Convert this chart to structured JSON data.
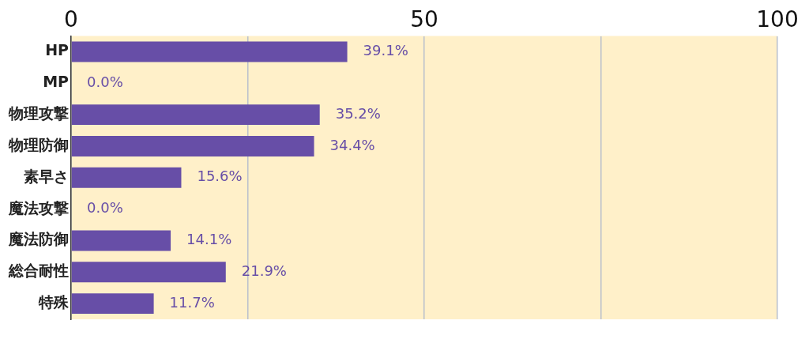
{
  "chart_data": {
    "type": "bar",
    "orientation": "horizontal",
    "categories": [
      "HP",
      "MP",
      "物理攻撃",
      "物理防御",
      "素早さ",
      "魔法攻撃",
      "魔法防御",
      "総合耐性",
      "特殊"
    ],
    "values": [
      39.1,
      0.0,
      35.2,
      34.4,
      15.6,
      0.0,
      14.1,
      21.9,
      11.7
    ],
    "value_labels": [
      "39.1%",
      "0.0%",
      "35.2%",
      "34.4%",
      "15.6%",
      "0.0%",
      "14.1%",
      "21.9%",
      "11.7%"
    ],
    "color": "#674ea7",
    "xlim": [
      0,
      100
    ],
    "xticks": [
      0,
      {
        "value": 25,
        "label": null
      },
      50,
      {
        "value": 75,
        "label": null
      },
      100
    ],
    "grid": "x",
    "legend": false
  }
}
